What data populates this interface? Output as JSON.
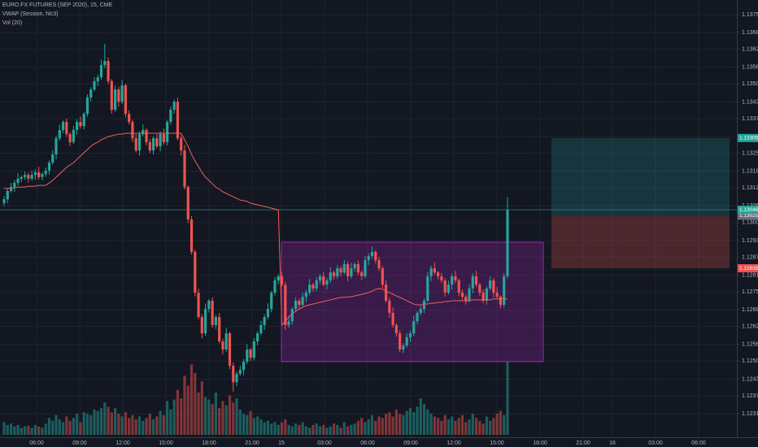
{
  "chart_data": {
    "type": "candlestick",
    "title": "EURO FX FUTURES (SEP 2020), 15, CME",
    "grid": true,
    "up_color": "#26a69a",
    "down_color": "#ef5350",
    "ylim": [
      1.12234,
      1.13803
    ],
    "yticks": [
      {
        "value": 1.1375,
        "label": "1.13750"
      },
      1.13685,
      1.13625,
      {
        "value": 1.1356,
        "label": "1.13560"
      },
      {
        "value": 1.135,
        "label": "1.13500"
      },
      1.13435,
      1.13375,
      {
        "value": 1.1331,
        "label": "1.13310"
      },
      {
        "value": 1.1325,
        "label": "1.13250"
      },
      1.13185,
      1.13125,
      {
        "value": 1.1306,
        "label": "1.13060"
      },
      {
        "value": 1.13,
        "label": "1.13000"
      },
      1.12935,
      1.12875,
      {
        "value": 1.1281,
        "label": "1.12810"
      },
      {
        "value": 1.1275,
        "label": "1.12750"
      },
      1.12685,
      1.12625,
      {
        "value": 1.1256,
        "label": "1.12560"
      },
      {
        "value": 1.125,
        "label": "1.12500"
      },
      1.12435,
      1.12375,
      {
        "value": 1.1231,
        "label": "1.12310"
      }
    ],
    "xticks": [
      "06:00",
      "09:00",
      "12:00",
      "15:00",
      "18:00",
      "21:00",
      "15",
      "03:00",
      "06:00",
      "09:00",
      "12:00",
      "15:00",
      "18:00",
      "21:00",
      "16",
      "03:00",
      "06:00"
    ],
    "open": [
      1.1307,
      1.13084,
      1.13114,
      1.13128,
      1.13143,
      1.13158,
      1.13164,
      1.13172,
      1.13158,
      1.13172,
      1.13181,
      1.13164,
      1.13175,
      1.13187,
      1.13216,
      1.13246,
      1.13304,
      1.13334,
      1.13363,
      1.13319,
      1.1329,
      1.13334,
      1.13363,
      1.13348,
      1.13392,
      1.13451,
      1.1348,
      1.1351,
      1.13524,
      1.13568,
      1.13583,
      1.1351,
      1.13407,
      1.1348,
      1.13436,
      1.13495,
      1.13392,
      1.13363,
      1.13304,
      1.1326,
      1.13319,
      1.13334,
      1.1329,
      1.1326,
      1.13304,
      1.13275,
      1.13319,
      1.1329,
      1.13363,
      1.13407,
      1.13436,
      1.13304,
      1.1326,
      1.13128,
      1.13011,
      1.12894,
      1.12747,
      1.12659,
      1.126,
      1.12688,
      1.12718,
      1.1263,
      1.12659,
      1.12571,
      1.12542,
      1.126,
      1.12483,
      1.12424,
      1.12454,
      1.12468,
      1.12498,
      1.12542,
      1.12512,
      1.12571,
      1.126,
      1.1263,
      1.12659,
      1.12688,
      1.12747,
      1.12791,
      1.12806,
      1.12776,
      1.1263,
      1.12644,
      1.12688,
      1.12718,
      1.12703,
      1.12732,
      1.12747,
      1.12776,
      1.12762,
      1.12791,
      1.12806,
      1.12776,
      1.12791,
      1.1282,
      1.12806,
      1.12835,
      1.1282,
      1.1285,
      1.12806,
      1.12835,
      1.1285,
      1.1282,
      1.12806,
      1.12864,
      1.12879,
      1.12894,
      1.12864,
      1.12835,
      1.12776,
      1.12718,
      1.12674,
      1.1263,
      1.126,
      1.12542,
      1.12556,
      1.12586,
      1.126,
      1.12644,
      1.12674,
      1.12688,
      1.12718,
      1.12806,
      1.12835,
      1.1282,
      1.12806,
      1.12791,
      1.12747,
      1.12776,
      1.12806,
      1.12791,
      1.12747,
      1.12732,
      1.12718,
      1.12762,
      1.12806,
      1.12776,
      1.12747,
      1.12718,
      1.12762,
      1.12791,
      1.12747,
      1.12732,
      1.12703,
      1.12806
    ],
    "high": [
      1.13096,
      1.13122,
      1.13143,
      1.13153,
      1.13178,
      1.1317,
      1.13184,
      1.1318,
      1.13187,
      1.13191,
      1.13201,
      1.13181,
      1.13199,
      1.13224,
      1.13261,
      1.13314,
      1.13354,
      1.13369,
      1.13375,
      1.13327,
      1.13349,
      1.13373,
      1.13383,
      1.13398,
      1.13463,
      1.13488,
      1.13525,
      1.13534,
      1.13588,
      1.13645,
      1.13595,
      1.13518,
      1.13495,
      1.1349,
      1.13515,
      1.13501,
      1.13404,
      1.13371,
      1.13319,
      1.13329,
      1.13354,
      1.1334,
      1.13302,
      1.13312,
      1.13319,
      1.13329,
      1.13339,
      1.13369,
      1.13419,
      1.13444,
      1.13451,
      1.13314,
      1.1328,
      1.13134,
      1.13023,
      1.12902,
      1.12762,
      1.12669,
      1.12708,
      1.12724,
      1.1273,
      1.12667,
      1.12674,
      1.12581,
      1.1262,
      1.12606,
      1.12495,
      1.12462,
      1.12483,
      1.12508,
      1.12562,
      1.12548,
      1.12583,
      1.12608,
      1.12645,
      1.12669,
      1.12708,
      1.12753,
      1.12803,
      1.12814,
      1.12821,
      1.12786,
      1.12664,
      1.12694,
      1.1273,
      1.12726,
      1.12747,
      1.12757,
      1.12796,
      1.12782,
      1.12803,
      1.12814,
      1.12821,
      1.12801,
      1.1284,
      1.12826,
      1.12847,
      1.12843,
      1.12865,
      1.1286,
      1.12855,
      1.12856,
      1.12862,
      1.12828,
      1.12879,
      1.12889,
      1.12914,
      1.129,
      1.12876,
      1.12843,
      1.12791,
      1.12728,
      1.12694,
      1.12636,
      1.12612,
      1.12564,
      1.12601,
      1.1261,
      1.12664,
      1.1268,
      1.127,
      1.12726,
      1.12821,
      1.12845,
      1.12855,
      1.12826,
      1.12818,
      1.12799,
      1.12791,
      1.12816,
      1.12826,
      1.12797,
      1.12759,
      1.1274,
      1.12777,
      1.12816,
      1.12826,
      1.12782,
      1.12759,
      1.1277,
      1.12806,
      1.12801,
      1.12767,
      1.12738,
      1.12818,
      1.13091
    ],
    "low": [
      1.1306,
      1.1307,
      1.13107,
      1.1311,
      1.13134,
      1.13146,
      1.13154,
      1.13144,
      1.13151,
      1.13154,
      1.13155,
      1.13152,
      1.13165,
      1.13173,
      1.13209,
      1.13228,
      1.13295,
      1.13322,
      1.13309,
      1.13276,
      1.13283,
      1.13316,
      1.13339,
      1.13336,
      1.13382,
      1.13437,
      1.13473,
      1.13492,
      1.13515,
      1.13556,
      1.135,
      1.13393,
      1.134,
      1.13418,
      1.13427,
      1.1338,
      1.13353,
      1.1329,
      1.13253,
      1.13242,
      1.1331,
      1.13278,
      1.1325,
      1.13246,
      1.13268,
      1.13257,
      1.13281,
      1.13278,
      1.13353,
      1.13393,
      1.13297,
      1.13242,
      1.13119,
      1.12999,
      1.12884,
      1.12733,
      1.12652,
      1.12582,
      1.12591,
      1.12676,
      1.1262,
      1.12616,
      1.12564,
      1.12524,
      1.12533,
      1.12471,
      1.1239,
      1.1241,
      1.12447,
      1.1245,
      1.12489,
      1.125,
      1.12502,
      1.12557,
      1.12593,
      1.12612,
      1.1265,
      1.12676,
      1.12737,
      1.12777,
      1.12769,
      1.12612,
      1.12621,
      1.12632,
      1.12678,
      1.12689,
      1.12696,
      1.12714,
      1.12738,
      1.1275,
      1.12752,
      1.12777,
      1.12769,
      1.12758,
      1.12782,
      1.12794,
      1.12796,
      1.12806,
      1.12813,
      1.12788,
      1.12797,
      1.12823,
      1.1281,
      1.12792,
      1.12799,
      1.12846,
      1.1287,
      1.12852,
      1.12825,
      1.12762,
      1.12711,
      1.12656,
      1.12621,
      1.12588,
      1.12532,
      1.12528,
      1.12549,
      1.12568,
      1.12591,
      1.12632,
      1.12664,
      1.12674,
      1.12711,
      1.12788,
      1.12811,
      1.12794,
      1.12781,
      1.12733,
      1.1274,
      1.12758,
      1.12782,
      1.12735,
      1.12722,
      1.12704,
      1.12711,
      1.12744,
      1.12767,
      1.12735,
      1.12708,
      1.12704,
      1.12755,
      1.12729,
      1.12723,
      1.12691,
      1.12693,
      1.12798
    ],
    "close": [
      1.13084,
      1.13114,
      1.13128,
      1.13143,
      1.13158,
      1.13164,
      1.13172,
      1.13158,
      1.13172,
      1.13181,
      1.13164,
      1.13175,
      1.13187,
      1.13216,
      1.13246,
      1.13304,
      1.13334,
      1.13363,
      1.13319,
      1.1329,
      1.13334,
      1.13363,
      1.13348,
      1.13392,
      1.13451,
      1.1348,
      1.1351,
      1.13524,
      1.13568,
      1.13583,
      1.1351,
      1.13407,
      1.1348,
      1.13436,
      1.13495,
      1.13392,
      1.13363,
      1.13304,
      1.1326,
      1.13319,
      1.13334,
      1.1329,
      1.1326,
      1.13304,
      1.13275,
      1.13319,
      1.1329,
      1.13363,
      1.13407,
      1.13436,
      1.13304,
      1.1326,
      1.13128,
      1.13011,
      1.12894,
      1.12747,
      1.12659,
      1.126,
      1.12688,
      1.12718,
      1.1263,
      1.12659,
      1.12571,
      1.12542,
      1.126,
      1.12483,
      1.12424,
      1.12454,
      1.12468,
      1.12498,
      1.12542,
      1.12512,
      1.12571,
      1.126,
      1.1263,
      1.12659,
      1.12688,
      1.12747,
      1.12791,
      1.12806,
      1.12776,
      1.1263,
      1.12644,
      1.12688,
      1.12718,
      1.12703,
      1.12732,
      1.12747,
      1.12776,
      1.12762,
      1.12791,
      1.12806,
      1.12776,
      1.12791,
      1.1282,
      1.12806,
      1.12835,
      1.1282,
      1.1285,
      1.12806,
      1.12835,
      1.1285,
      1.1282,
      1.12806,
      1.12864,
      1.12879,
      1.12894,
      1.12864,
      1.12835,
      1.12776,
      1.12718,
      1.12674,
      1.1263,
      1.126,
      1.12542,
      1.12556,
      1.12586,
      1.126,
      1.12644,
      1.12674,
      1.12688,
      1.12718,
      1.12806,
      1.12835,
      1.1282,
      1.12806,
      1.12791,
      1.12747,
      1.12776,
      1.12806,
      1.12791,
      1.12747,
      1.12732,
      1.12718,
      1.12762,
      1.12806,
      1.12776,
      1.12747,
      1.12718,
      1.12762,
      1.12791,
      1.12747,
      1.12732,
      1.12703,
      1.12806,
      1.13046
    ],
    "vwap": {
      "name": "VWAP (Session, hlc3)",
      "color": "#f0605d",
      "values": [
        1.13123,
        1.13123,
        1.13125,
        1.13125,
        1.13128,
        1.13128,
        1.13128,
        1.13131,
        1.13131,
        1.13131,
        1.13134,
        1.13134,
        1.13134,
        1.13143,
        1.13152,
        1.13164,
        1.13175,
        1.13187,
        1.13199,
        1.13208,
        1.13216,
        1.13228,
        1.1324,
        1.13252,
        1.13263,
        1.13275,
        1.13284,
        1.1329,
        1.13299,
        1.13304,
        1.1331,
        1.13313,
        1.13316,
        1.13319,
        1.13319,
        1.13322,
        1.13322,
        1.13322,
        1.13322,
        1.13322,
        1.13322,
        1.13322,
        1.13322,
        1.13322,
        1.13322,
        1.13322,
        1.13322,
        1.13322,
        1.13322,
        1.13322,
        1.13322,
        1.13322,
        1.13299,
        1.13275,
        1.13246,
        1.13222,
        1.13202,
        1.13181,
        1.13164,
        1.13152,
        1.1314,
        1.13128,
        1.1312,
        1.13111,
        1.13105,
        1.13099,
        1.13093,
        1.13087,
        1.13081,
        1.13079,
        1.13076,
        1.1307,
        1.13067,
        1.13064,
        1.13061,
        1.13058,
        1.13055,
        1.13052,
        1.13049,
        1.13046,
        1.1263,
        1.12644,
        1.12659,
        1.12671,
        1.1268,
        1.12688,
        1.12694,
        1.127,
        1.12703,
        1.12706,
        1.12709,
        1.12712,
        1.12715,
        1.12718,
        1.12721,
        1.12724,
        1.12727,
        1.1273,
        1.1273,
        1.12732,
        1.12732,
        1.12735,
        1.12738,
        1.12741,
        1.12744,
        1.12747,
        1.12753,
        1.12759,
        1.12762,
        1.12759,
        1.12753,
        1.12747,
        1.12741,
        1.12735,
        1.1273,
        1.12724,
        1.12718,
        1.12712,
        1.12706,
        1.12703,
        1.12703,
        1.12706,
        1.12706,
        1.12709,
        1.12709,
        1.12712,
        1.12712,
        1.12715,
        1.12715,
        1.12718,
        1.12718,
        1.12718,
        1.12718,
        1.12718,
        1.12718,
        1.12721,
        1.12721,
        1.12721,
        1.12721,
        1.12721,
        1.12721,
        1.12724,
        1.12724,
        1.12724,
        1.12724,
        1.12724
      ]
    },
    "volume": {
      "name": "Vol (20)",
      "values": [
        900,
        700,
        800,
        600,
        700,
        500,
        600,
        650,
        500,
        700,
        600,
        500,
        800,
        1200,
        1000,
        1400,
        1100,
        900,
        1300,
        1000,
        1200,
        1500,
        900,
        1600,
        1500,
        1400,
        1800,
        1700,
        1900,
        2300,
        2000,
        1600,
        1900,
        1500,
        1300,
        1600,
        1200,
        1400,
        1100,
        1300,
        1000,
        1200,
        1500,
        1100,
        1300,
        1700,
        1400,
        2400,
        1800,
        2500,
        3200,
        2600,
        4200,
        3500,
        5000,
        4400,
        3000,
        3800,
        2700,
        2500,
        2200,
        3000,
        1900,
        2400,
        2100,
        2800,
        2300,
        2600,
        1800,
        1500,
        1400,
        1700,
        1200,
        1300,
        1100,
        900,
        1000,
        800,
        900,
        700,
        900,
        1100,
        700,
        600,
        800,
        700,
        900,
        600,
        500,
        700,
        800,
        600,
        700,
        500,
        600,
        800,
        700,
        500,
        900,
        600,
        700,
        800,
        1000,
        1200,
        900,
        1100,
        1400,
        1000,
        1300,
        1200,
        1500,
        1600,
        1300,
        1800,
        1500,
        1400,
        1700,
        1900,
        1600,
        2000,
        2600,
        2200,
        1800,
        1500,
        1300,
        1200,
        1000,
        1400,
        1100,
        1300,
        1000,
        1200,
        1400,
        900,
        1100,
        1500,
        1200,
        1000,
        800,
        1300,
        1000,
        1200,
        1500,
        1700,
        1400,
        5200
      ]
    },
    "range_box": {
      "top": 1.12929,
      "bottom": 1.12498,
      "color": "#9c27b0"
    },
    "position": {
      "target": 1.13305,
      "entry": 1.13025,
      "stop": 1.12835
    }
  }
}
